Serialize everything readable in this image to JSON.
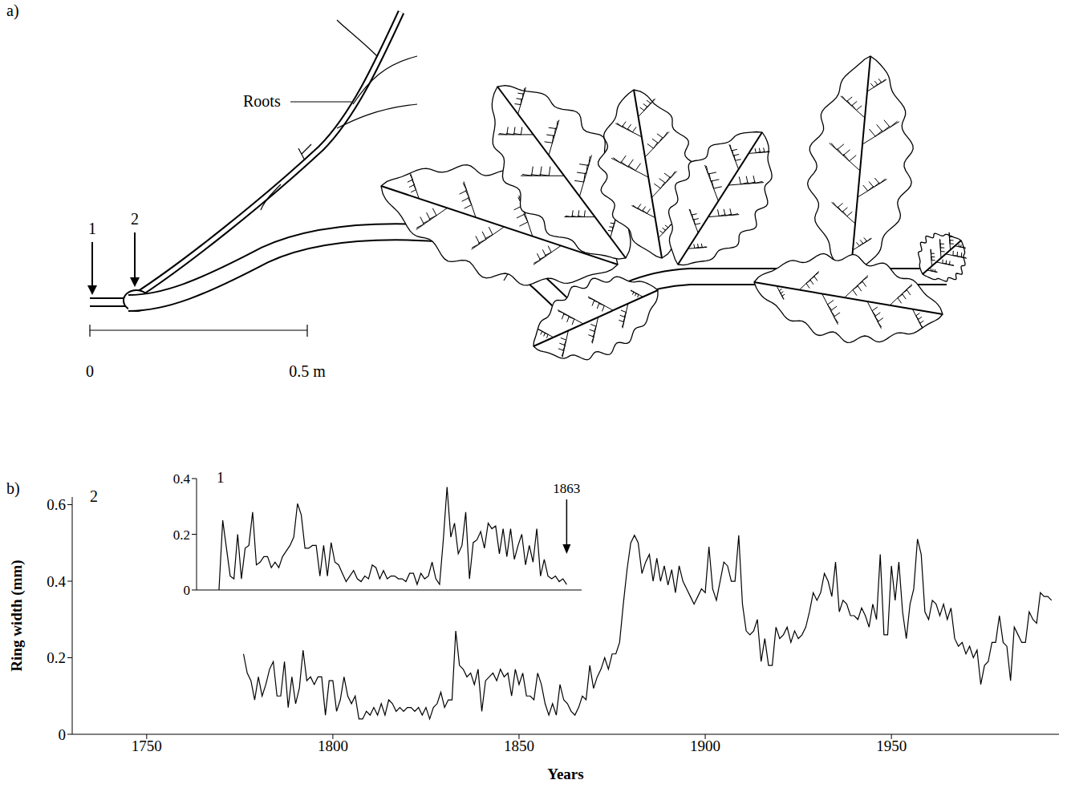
{
  "panel_a": {
    "label": "a)",
    "roots_label": "Roots",
    "arrow_labels": [
      "1",
      "2"
    ],
    "scale_bar": {
      "start_label": "0",
      "end_label": "0.5 m"
    }
  },
  "panel_b": {
    "label": "b)"
  },
  "chart_data": [
    {
      "type": "line",
      "x_label": "Years",
      "y_label": "Ring width (mm)",
      "xlim": [
        1730,
        1995
      ],
      "xticks": [
        1750,
        1800,
        1850,
        1900,
        1950
      ],
      "ylim": [
        0,
        0.62
      ],
      "yticks": [
        0,
        0.2,
        0.4,
        0.6
      ],
      "x": [
        1776,
        1777,
        1778,
        1779,
        1780,
        1781,
        1782,
        1783,
        1784,
        1785,
        1786,
        1787,
        1788,
        1789,
        1790,
        1791,
        1792,
        1793,
        1794,
        1795,
        1796,
        1797,
        1798,
        1799,
        1800,
        1801,
        1802,
        1803,
        1804,
        1805,
        1806,
        1807,
        1808,
        1809,
        1810,
        1811,
        1812,
        1813,
        1814,
        1815,
        1816,
        1817,
        1818,
        1819,
        1820,
        1821,
        1822,
        1823,
        1824,
        1825,
        1826,
        1827,
        1828,
        1829,
        1830,
        1831,
        1832,
        1833,
        1834,
        1835,
        1836,
        1837,
        1838,
        1839,
        1840,
        1841,
        1842,
        1843,
        1844,
        1845,
        1846,
        1847,
        1848,
        1849,
        1850,
        1851,
        1852,
        1853,
        1854,
        1855,
        1856,
        1857,
        1858,
        1859,
        1860,
        1861,
        1862,
        1863,
        1864,
        1865,
        1866,
        1867,
        1868,
        1869,
        1870,
        1871,
        1872,
        1873,
        1874,
        1875,
        1876,
        1877,
        1878,
        1879,
        1880,
        1881,
        1882,
        1883,
        1884,
        1885,
        1886,
        1887,
        1888,
        1889,
        1890,
        1891,
        1892,
        1893,
        1894,
        1895,
        1896,
        1897,
        1898,
        1899,
        1900,
        1901,
        1902,
        1903,
        1904,
        1905,
        1906,
        1907,
        1908,
        1909,
        1910,
        1911,
        1912,
        1913,
        1914,
        1915,
        1916,
        1917,
        1918,
        1919,
        1920,
        1921,
        1922,
        1923,
        1924,
        1925,
        1926,
        1927,
        1928,
        1929,
        1930,
        1931,
        1932,
        1933,
        1934,
        1935,
        1936,
        1937,
        1938,
        1939,
        1940,
        1941,
        1942,
        1943,
        1944,
        1945,
        1946,
        1947,
        1948,
        1949,
        1950,
        1951,
        1952,
        1953,
        1954,
        1955,
        1956,
        1957,
        1958,
        1959,
        1960,
        1961,
        1962,
        1963,
        1964,
        1965,
        1966,
        1967,
        1968,
        1969,
        1970,
        1971,
        1972,
        1973,
        1974,
        1975,
        1976,
        1977,
        1978,
        1979,
        1980,
        1981,
        1982,
        1983,
        1984,
        1985,
        1986,
        1987,
        1988,
        1989,
        1990,
        1991,
        1992,
        1993
      ],
      "series": [
        {
          "name": "2",
          "color": "#000000",
          "values": [
            0.21,
            0.16,
            0.14,
            0.09,
            0.15,
            0.1,
            0.13,
            0.17,
            0.19,
            0.1,
            0.1,
            0.19,
            0.07,
            0.15,
            0.08,
            0.12,
            0.22,
            0.14,
            0.15,
            0.13,
            0.15,
            0.15,
            0.05,
            0.14,
            0.14,
            0.06,
            0.09,
            0.15,
            0.1,
            0.08,
            0.1,
            0.04,
            0.04,
            0.06,
            0.05,
            0.07,
            0.05,
            0.08,
            0.05,
            0.09,
            0.08,
            0.06,
            0.07,
            0.06,
            0.07,
            0.07,
            0.06,
            0.07,
            0.05,
            0.07,
            0.04,
            0.07,
            0.08,
            0.11,
            0.07,
            0.09,
            0.09,
            0.27,
            0.18,
            0.17,
            0.15,
            0.16,
            0.13,
            0.17,
            0.06,
            0.14,
            0.15,
            0.16,
            0.14,
            0.17,
            0.15,
            0.16,
            0.1,
            0.17,
            0.13,
            0.16,
            0.1,
            0.1,
            0.09,
            0.16,
            0.13,
            0.08,
            0.05,
            0.08,
            0.05,
            0.13,
            0.09,
            0.08,
            0.06,
            0.05,
            0.07,
            0.1,
            0.09,
            0.18,
            0.12,
            0.15,
            0.17,
            0.2,
            0.17,
            0.21,
            0.21,
            0.24,
            0.34,
            0.43,
            0.5,
            0.52,
            0.5,
            0.42,
            0.45,
            0.47,
            0.4,
            0.46,
            0.4,
            0.44,
            0.39,
            0.43,
            0.37,
            0.44,
            0.4,
            0.38,
            0.36,
            0.34,
            0.36,
            0.38,
            0.37,
            0.49,
            0.38,
            0.35,
            0.4,
            0.45,
            0.44,
            0.4,
            0.4,
            0.52,
            0.34,
            0.27,
            0.26,
            0.27,
            0.3,
            0.19,
            0.25,
            0.18,
            0.18,
            0.28,
            0.25,
            0.26,
            0.28,
            0.24,
            0.27,
            0.25,
            0.26,
            0.28,
            0.32,
            0.37,
            0.35,
            0.37,
            0.42,
            0.4,
            0.36,
            0.45,
            0.32,
            0.35,
            0.34,
            0.31,
            0.31,
            0.3,
            0.33,
            0.31,
            0.28,
            0.34,
            0.3,
            0.47,
            0.26,
            0.26,
            0.44,
            0.35,
            0.45,
            0.32,
            0.25,
            0.34,
            0.38,
            0.51,
            0.47,
            0.32,
            0.3,
            0.35,
            0.34,
            0.31,
            0.34,
            0.3,
            0.33,
            0.25,
            0.23,
            0.24,
            0.21,
            0.23,
            0.2,
            0.22,
            0.13,
            0.18,
            0.19,
            0.24,
            0.24,
            0.31,
            0.24,
            0.23,
            0.14,
            0.28,
            0.26,
            0.24,
            0.24,
            0.32,
            0.3,
            0.29,
            0.37,
            0.36,
            0.36,
            0.35
          ]
        }
      ]
    },
    {
      "type": "line",
      "xlim": [
        1764,
        1867
      ],
      "xticks": [
        1800,
        1833
      ],
      "ylim": [
        0,
        0.4
      ],
      "yticks": [
        0,
        0.2,
        0.4
      ],
      "tick_labels": "y",
      "annotations": [
        {
          "text": "1863",
          "x": 1863
        }
      ],
      "x": [
        1770,
        1771,
        1772,
        1773,
        1774,
        1775,
        1776,
        1777,
        1778,
        1779,
        1780,
        1781,
        1782,
        1783,
        1784,
        1785,
        1786,
        1787,
        1788,
        1789,
        1790,
        1791,
        1792,
        1793,
        1794,
        1795,
        1796,
        1797,
        1798,
        1799,
        1800,
        1801,
        1802,
        1803,
        1804,
        1805,
        1806,
        1807,
        1808,
        1809,
        1810,
        1811,
        1812,
        1813,
        1814,
        1815,
        1816,
        1817,
        1818,
        1819,
        1820,
        1821,
        1822,
        1823,
        1824,
        1825,
        1826,
        1827,
        1828,
        1829,
        1830,
        1831,
        1832,
        1833,
        1834,
        1835,
        1836,
        1837,
        1838,
        1839,
        1840,
        1841,
        1842,
        1843,
        1844,
        1845,
        1846,
        1847,
        1848,
        1849,
        1850,
        1851,
        1852,
        1853,
        1854,
        1855,
        1856,
        1857,
        1858,
        1859,
        1860,
        1861,
        1862,
        1863
      ],
      "series": [
        {
          "name": "1",
          "color": "#000000",
          "values": [
            0.0,
            0.25,
            0.15,
            0.05,
            0.04,
            0.2,
            0.04,
            0.15,
            0.16,
            0.28,
            0.09,
            0.1,
            0.12,
            0.12,
            0.08,
            0.1,
            0.08,
            0.12,
            0.14,
            0.16,
            0.19,
            0.31,
            0.27,
            0.15,
            0.15,
            0.16,
            0.16,
            0.05,
            0.16,
            0.05,
            0.17,
            0.1,
            0.09,
            0.06,
            0.03,
            0.05,
            0.07,
            0.04,
            0.03,
            0.05,
            0.04,
            0.09,
            0.08,
            0.04,
            0.07,
            0.04,
            0.05,
            0.05,
            0.04,
            0.04,
            0.03,
            0.06,
            0.06,
            0.02,
            0.06,
            0.04,
            0.05,
            0.1,
            0.04,
            0.02,
            0.18,
            0.37,
            0.19,
            0.24,
            0.13,
            0.16,
            0.28,
            0.04,
            0.17,
            0.18,
            0.21,
            0.15,
            0.24,
            0.22,
            0.23,
            0.13,
            0.22,
            0.12,
            0.22,
            0.11,
            0.16,
            0.2,
            0.09,
            0.16,
            0.1,
            0.22,
            0.05,
            0.11,
            0.05,
            0.04,
            0.05,
            0.03,
            0.04,
            0.02
          ]
        }
      ]
    }
  ]
}
